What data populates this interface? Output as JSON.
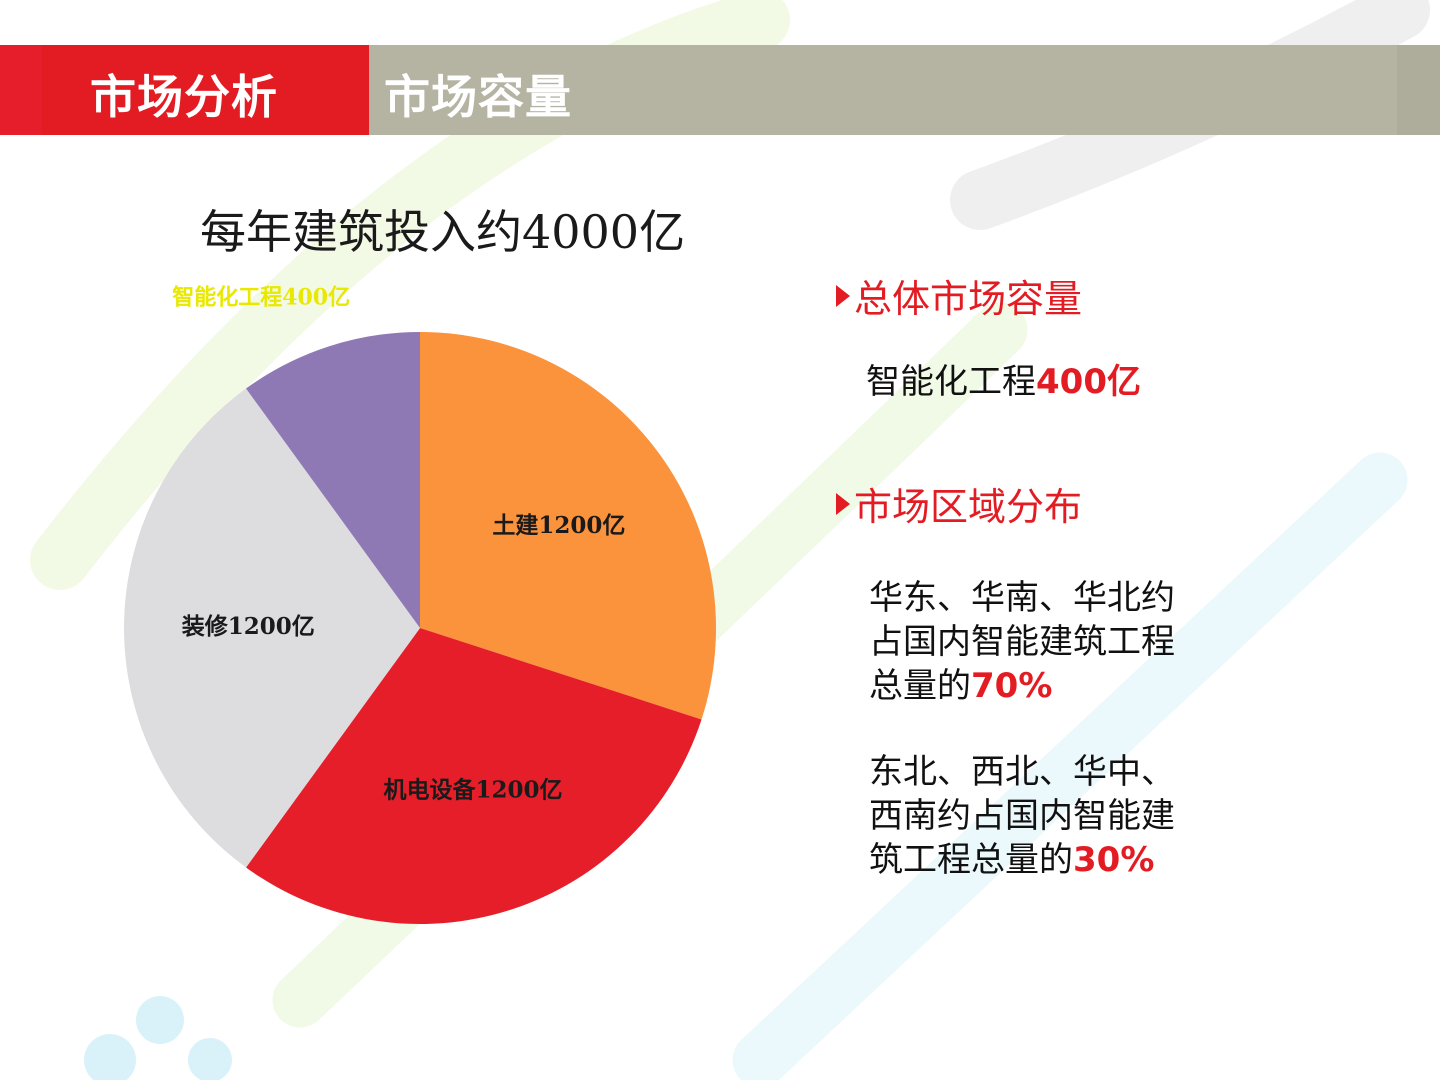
{
  "header": {
    "section_title": "市场分析",
    "topic_title": "市场容量"
  },
  "chart_title": "每年建筑投入约4000亿",
  "chart_data": {
    "type": "pie",
    "title": "每年建筑投入约4000亿",
    "slices": [
      {
        "label": "土建1200亿",
        "value": 1200,
        "color": "#fb923c"
      },
      {
        "label": "机电设备1200亿",
        "value": 1200,
        "color": "#e51e2a"
      },
      {
        "label": "装修1200亿",
        "value": 1200,
        "color": "#dddcdf"
      },
      {
        "label": "智能化工程400亿",
        "value": 400,
        "color": "#8f79b4"
      }
    ],
    "label_colors": {
      "inside": "#1a1a1a",
      "outside": "#e8e800"
    }
  },
  "panel": {
    "bullet1": "总体市场容量",
    "p1": {
      "text": "智能化工程",
      "value": "400亿"
    },
    "bullet2": "市场区域分布",
    "p2": {
      "line1": "华东、华南、华北约",
      "line2": "占国内智能建筑工程",
      "line3": "总量的",
      "value": "70%"
    },
    "p3": {
      "line1": "东北、西北、华中、",
      "line2": "西南约占国内智能建",
      "line3": "筑工程总量的",
      "value": "30%"
    }
  },
  "colors": {
    "accent": "#e31c23",
    "header_gray": "#b5b3a2"
  }
}
